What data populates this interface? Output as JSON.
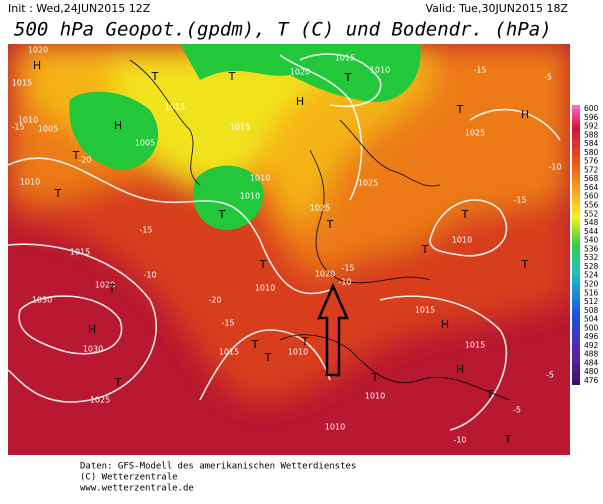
{
  "header": {
    "init": "Init : Wed,24JUN2015 12Z",
    "valid": "Valid: Tue,30JUN2015 18Z",
    "title": "500 hPa Geopot.(gpdm), T (C) und Bodendr. (hPa)"
  },
  "colorbar": [
    600,
    596,
    592,
    588,
    584,
    580,
    576,
    572,
    568,
    564,
    560,
    556,
    552,
    548,
    544,
    540,
    536,
    532,
    528,
    524,
    520,
    516,
    512,
    508,
    504,
    500,
    496,
    492,
    488,
    484,
    480,
    476
  ],
  "map_labels": [
    "1020",
    "H",
    "1015",
    "1010",
    "1005",
    "H",
    "1005",
    "T",
    "1010",
    "T",
    "1015",
    "T",
    "T",
    "1015",
    "1020",
    "T",
    "1015",
    "1010",
    "H",
    "1025",
    "T",
    "1025",
    "1025",
    "T",
    "1010",
    "1010",
    "T",
    "1010",
    "T",
    "1015",
    "1020",
    "1030",
    "H",
    "1030",
    "T",
    "1025",
    "T",
    "1020",
    "1010",
    "T",
    "T",
    "1015",
    "H",
    "1015",
    "H",
    "T",
    "T",
    "1015",
    "T",
    "T",
    "T",
    "1010",
    "1010",
    "T",
    "1010",
    "H",
    "T",
    "-15",
    "-20",
    "-15",
    "-10",
    "-15",
    "-20",
    "-10",
    "-15",
    "-10",
    "-5",
    "-5",
    "-15",
    "-5",
    "-10",
    "-15"
  ],
  "footer": [
    "Daten: GFS-Modell des amerikanischen Wetterdienstes",
    "(C) Wetterzentrale",
    "www.wetterzentrale.de"
  ]
}
